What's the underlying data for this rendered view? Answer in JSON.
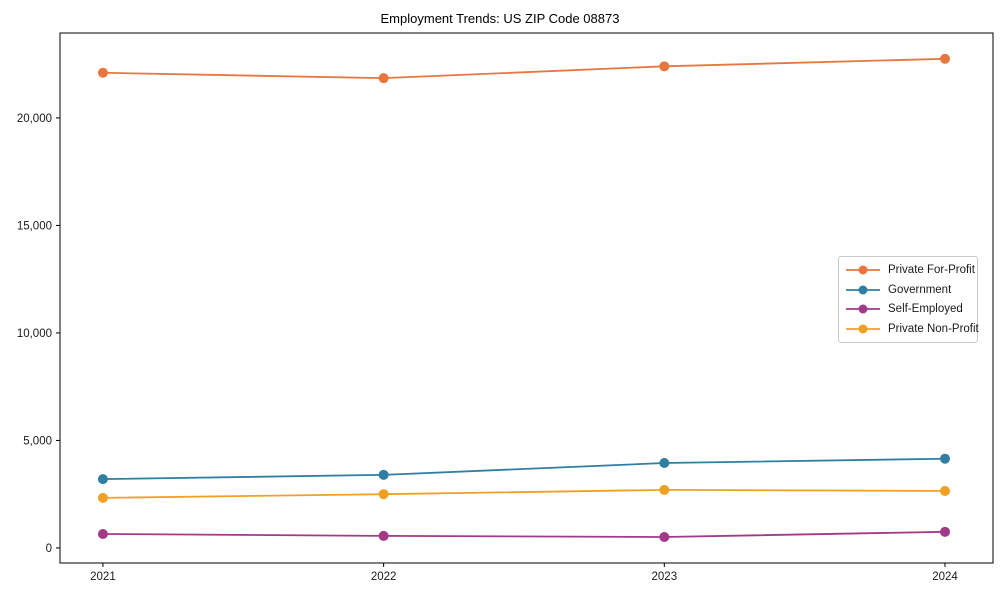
{
  "chart_data": {
    "type": "line",
    "title": "Employment Trends: US ZIP Code 08873",
    "xlabel": "",
    "ylabel": "",
    "x": [
      2021,
      2022,
      2023,
      2024
    ],
    "x_tick_labels": [
      "2021",
      "2022",
      "2023",
      "2024"
    ],
    "y_ticks": [
      0,
      5000,
      10000,
      15000,
      20000
    ],
    "y_tick_labels": [
      "0",
      "5,000",
      "10,000",
      "15,000",
      "20,000"
    ],
    "xlim": [
      2020.847,
      2024.171
    ],
    "ylim": [
      -700,
      23950
    ],
    "grid": false,
    "legend_position": "center-right",
    "series": [
      {
        "name": "Private For-Profit",
        "color": "#e8763f",
        "values": [
          22100,
          21850,
          22400,
          22750
        ]
      },
      {
        "name": "Government",
        "color": "#2f7fa2",
        "values": [
          3200,
          3400,
          3950,
          4150
        ]
      },
      {
        "name": "Self-Employed",
        "color": "#a23a87",
        "values": [
          650,
          560,
          510,
          750
        ]
      },
      {
        "name": "Private Non-Profit",
        "color": "#f0a125",
        "values": [
          2330,
          2500,
          2700,
          2650
        ]
      }
    ]
  }
}
